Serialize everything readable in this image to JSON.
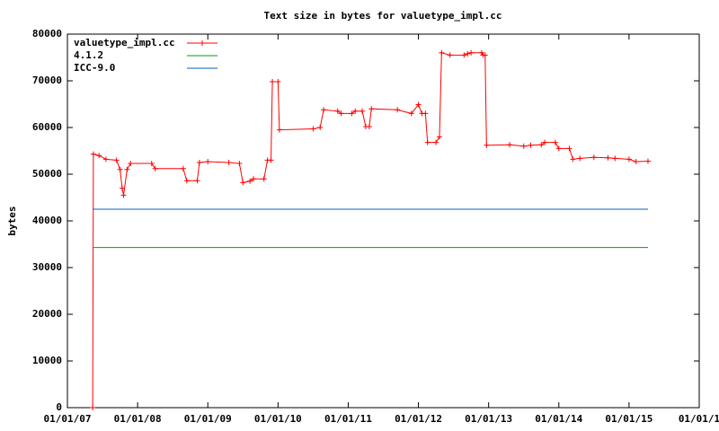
{
  "chart_data": {
    "type": "line",
    "title": "Text size in bytes for valuetype_impl.cc",
    "y_label": "bytes",
    "xlim": [
      2007,
      2016
    ],
    "xticks": [
      {
        "value": 2007,
        "label": "01/01/07"
      },
      {
        "value": 2008,
        "label": "01/01/08"
      },
      {
        "value": 2009,
        "label": "01/01/09"
      },
      {
        "value": 2010,
        "label": "01/01/10"
      },
      {
        "value": 2011,
        "label": "01/01/11"
      },
      {
        "value": 2012,
        "label": "01/01/12"
      },
      {
        "value": 2013,
        "label": "01/01/13"
      },
      {
        "value": 2014,
        "label": "01/01/14"
      },
      {
        "value": 2015,
        "label": "01/01/15"
      },
      {
        "value": 2016,
        "label": "01/01/1"
      }
    ],
    "ylim": [
      0,
      80000
    ],
    "yticks": [
      0,
      10000,
      20000,
      30000,
      40000,
      50000,
      60000,
      70000,
      80000
    ],
    "legend": "top-left",
    "series": [
      {
        "name": "valuetype_impl.cc",
        "color": "#ff0000",
        "markers": true,
        "x": [
          2007.36,
          2007.37,
          2007.45,
          2007.55,
          2007.7,
          2007.75,
          2007.78,
          2007.8,
          2007.85,
          2007.9,
          2008.2,
          2008.25,
          2008.65,
          2008.7,
          2008.85,
          2008.88,
          2009.0,
          2009.3,
          2009.45,
          2009.5,
          2009.6,
          2009.65,
          2009.8,
          2009.85,
          2009.9,
          2009.92,
          2010.0,
          2010.02,
          2010.5,
          2010.6,
          2010.65,
          2010.85,
          2010.9,
          2011.05,
          2011.1,
          2011.2,
          2011.25,
          2011.3,
          2011.33,
          2011.7,
          2011.9,
          2012.0,
          2012.05,
          2012.1,
          2012.13,
          2012.25,
          2012.3,
          2012.33,
          2012.45,
          2012.65,
          2012.7,
          2012.75,
          2012.9,
          2012.92,
          2012.95,
          2012.97,
          2013.3,
          2013.5,
          2013.6,
          2013.75,
          2013.8,
          2013.95,
          2014.0,
          2014.15,
          2014.2,
          2014.3,
          2014.5,
          2014.7,
          2014.8,
          2015.0,
          2015.1,
          2015.27
        ],
        "values": [
          0,
          54300,
          54000,
          53200,
          53000,
          51000,
          47000,
          45500,
          51000,
          52300,
          52300,
          51200,
          51200,
          48600,
          48600,
          52500,
          52700,
          52500,
          52300,
          48200,
          48500,
          49000,
          49000,
          53000,
          53000,
          69800,
          69800,
          59500,
          59700,
          60000,
          63800,
          63500,
          63000,
          63000,
          63500,
          63500,
          60200,
          60200,
          64000,
          63800,
          63000,
          64900,
          63000,
          63000,
          56800,
          56800,
          58000,
          76000,
          75500,
          75500,
          75800,
          76000,
          76000,
          75500,
          75500,
          56200,
          56300,
          56000,
          56200,
          56300,
          56800,
          56800,
          55500,
          55500,
          53200,
          53400,
          53600,
          53500,
          53400,
          53200,
          52700,
          52800
        ]
      },
      {
        "name": "4.1.2",
        "color": "#00a000",
        "markers": false,
        "x": [
          2007.36,
          2015.27
        ],
        "values": [
          34300,
          34300
        ]
      },
      {
        "name": "ICC-9.0",
        "color": "#0060c0",
        "markers": false,
        "x": [
          2007.36,
          2015.27
        ],
        "values": [
          42500,
          42500
        ]
      }
    ]
  }
}
